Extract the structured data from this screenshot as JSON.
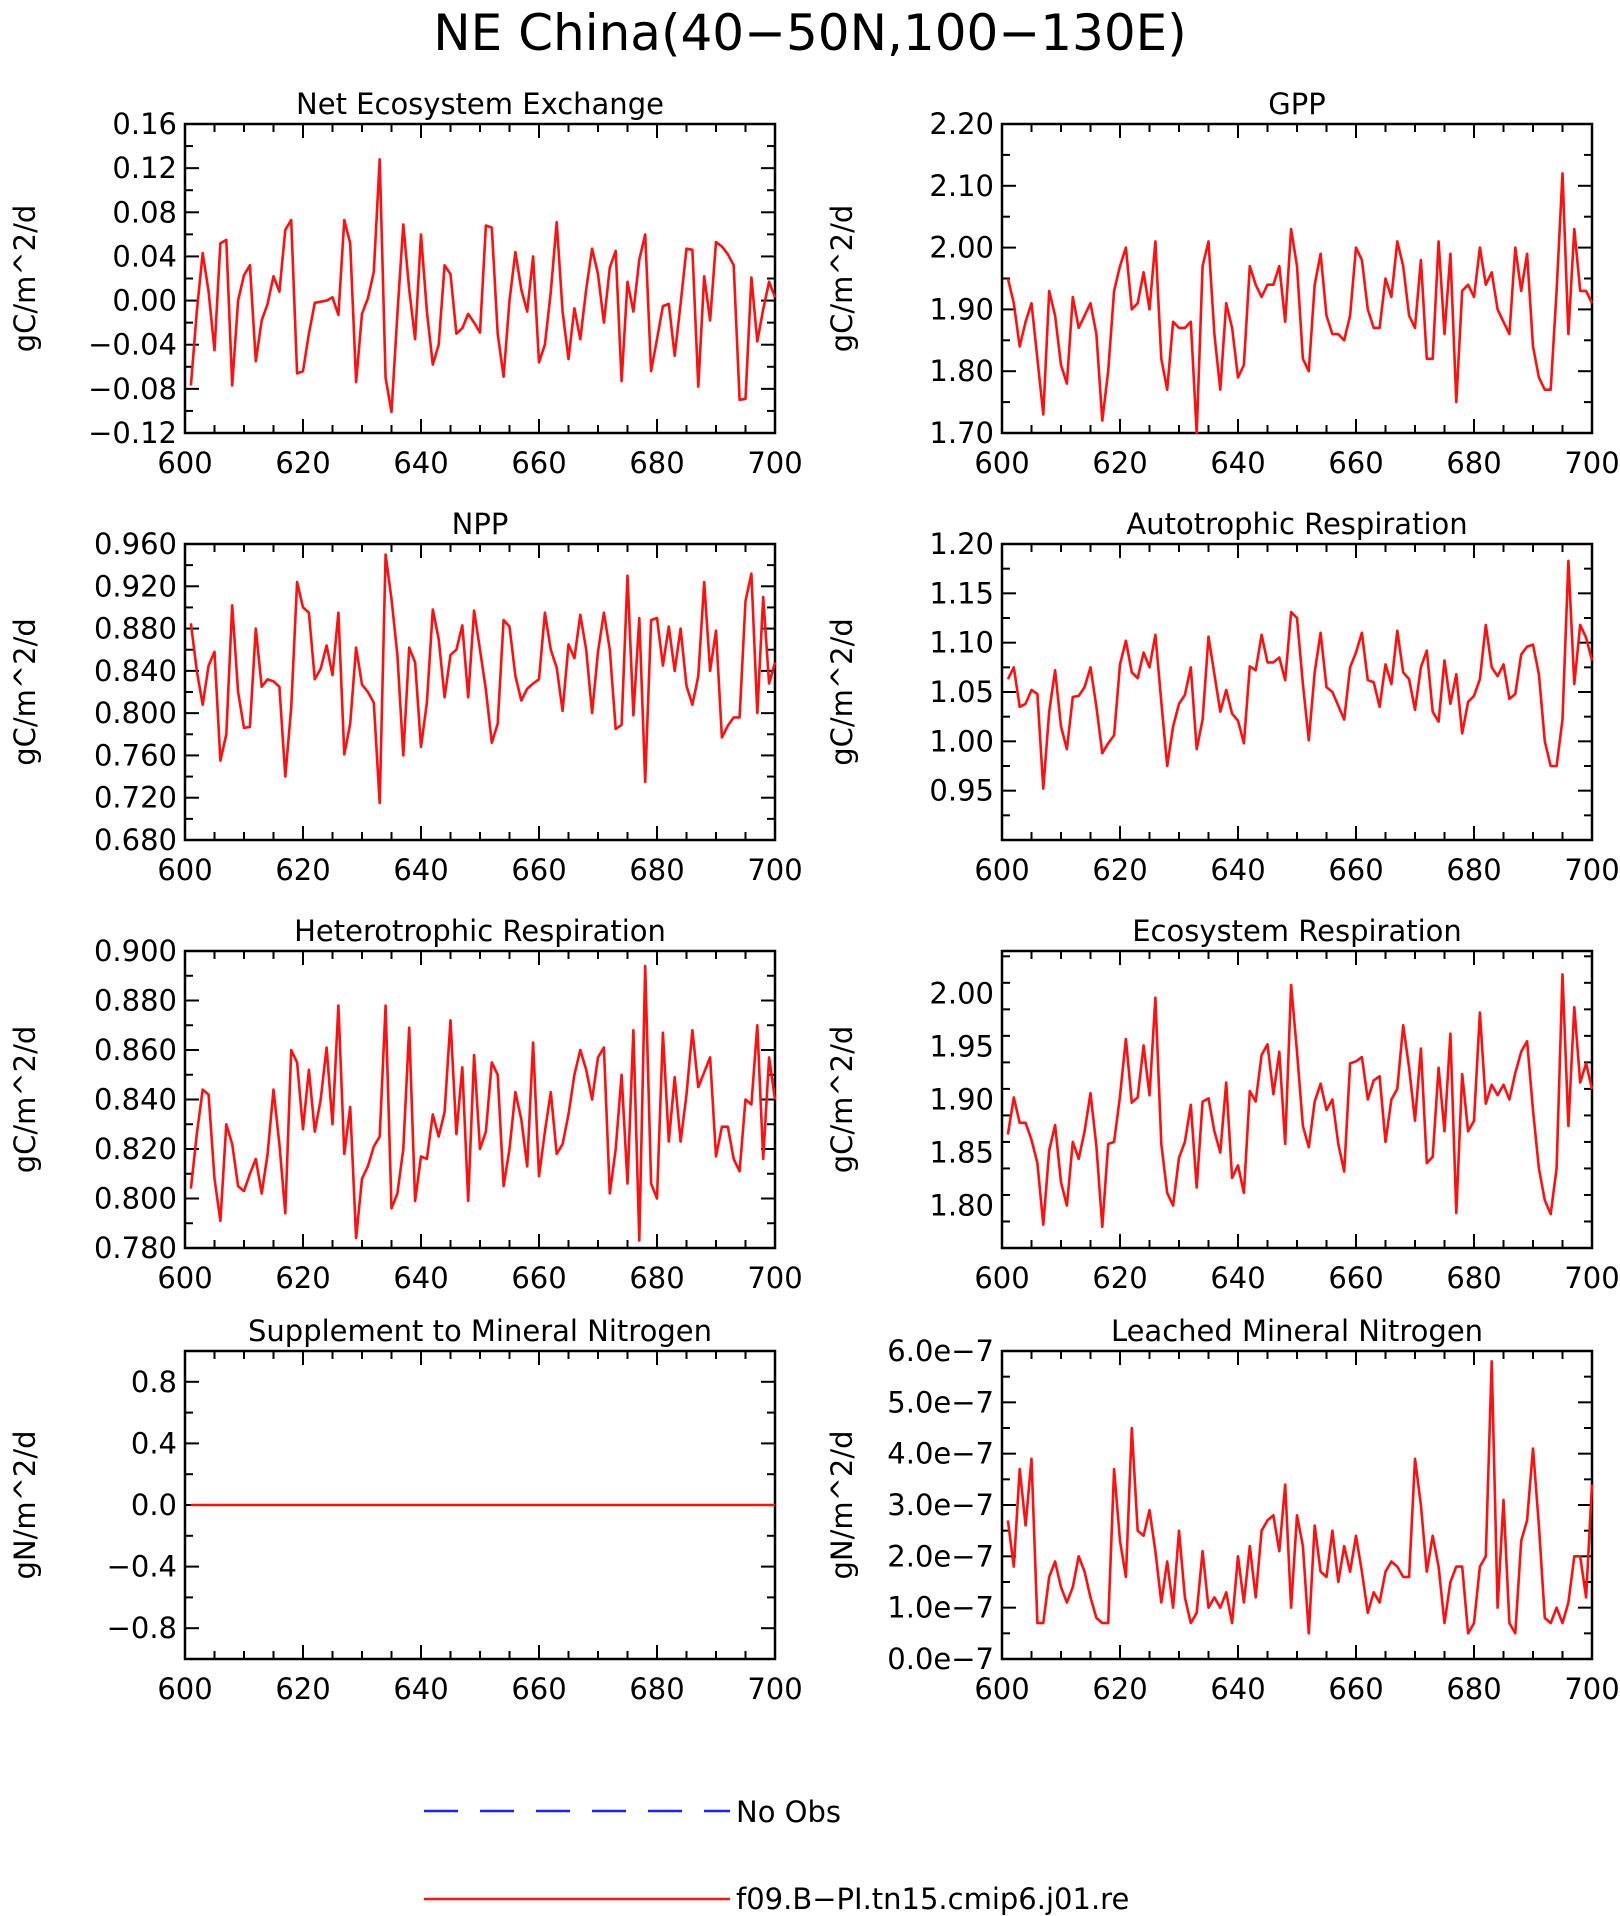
{
  "title": "NE China(40−50N,100−130E)",
  "legend": {
    "items": [
      {
        "label": "No Obs",
        "color": "#1f1fff",
        "style": "dashed"
      },
      {
        "label": "f09.B−PI.tn15.cmip6.j01.re",
        "color": "#ff1010",
        "style": "solid"
      }
    ]
  },
  "chart_data": [
    {
      "type": "line",
      "title": "Net Ecosystem Exchange",
      "ylabel": "gC/m^2/d",
      "xlim": [
        600,
        700
      ],
      "ylim": [
        -0.12,
        0.16
      ],
      "xticks": [
        600,
        620,
        640,
        660,
        680,
        700
      ],
      "yticks": [
        -0.12,
        -0.08,
        -0.04,
        0.0,
        0.04,
        0.08,
        0.12,
        0.16
      ],
      "yticklabels": [
        "−0.12",
        "−0.08",
        "−0.04",
        "0.00",
        "0.04",
        "0.08",
        "0.12",
        "0.16"
      ],
      "series": [
        {
          "name": "f09.B−PI.tn15.cmip6.j01.re",
          "color": "#ff1010",
          "x0": 601,
          "dx": 1,
          "values": [
            -0.077,
            -0.01,
            0.043,
            0.008,
            -0.045,
            0.052,
            0.055,
            -0.077,
            0.0,
            0.023,
            0.032,
            -0.055,
            -0.018,
            -0.003,
            0.022,
            0.008,
            0.064,
            0.073,
            -0.066,
            -0.064,
            -0.03,
            -0.002,
            -0.001,
            0.0,
            0.003,
            -0.013,
            0.073,
            0.052,
            -0.074,
            -0.012,
            0.002,
            0.026,
            0.128,
            -0.07,
            -0.101,
            -0.012,
            0.069,
            0.01,
            -0.035,
            0.06,
            -0.01,
            -0.058,
            -0.04,
            0.032,
            0.024,
            -0.03,
            -0.025,
            -0.012,
            -0.02,
            -0.029,
            0.068,
            0.066,
            -0.03,
            -0.069,
            0.0,
            0.044,
            0.01,
            -0.01,
            0.04,
            -0.056,
            -0.04,
            0.008,
            0.071,
            -0.01,
            -0.053,
            -0.007,
            -0.035,
            0.01,
            0.047,
            0.024,
            -0.02,
            0.03,
            0.045,
            -0.073,
            0.017,
            -0.01,
            0.037,
            0.06,
            -0.064,
            -0.035,
            -0.005,
            -0.003,
            -0.05,
            -0.003,
            0.047,
            0.046,
            -0.078,
            0.022,
            -0.018,
            0.053,
            0.049,
            0.042,
            0.032,
            -0.09,
            -0.089,
            0.021,
            -0.037,
            -0.008,
            0.017,
            0.003
          ]
        }
      ]
    },
    {
      "type": "line",
      "title": "GPP",
      "ylabel": "gC/m^2/d",
      "xlim": [
        600,
        700
      ],
      "ylim": [
        1.7,
        2.2
      ],
      "xticks": [
        600,
        620,
        640,
        660,
        680,
        700
      ],
      "yticks": [
        1.7,
        1.8,
        1.9,
        2.0,
        2.1,
        2.2
      ],
      "yticklabels": [
        "1.70",
        "1.80",
        "1.90",
        "2.00",
        "2.10",
        "2.20"
      ],
      "series": [
        {
          "name": "f09.B−PI.tn15.cmip6.j01.re",
          "color": "#ff1010",
          "x0": 601,
          "dx": 1,
          "values": [
            1.95,
            1.91,
            1.84,
            1.88,
            1.91,
            1.82,
            1.73,
            1.93,
            1.89,
            1.81,
            1.78,
            1.92,
            1.87,
            1.89,
            1.91,
            1.86,
            1.72,
            1.8,
            1.93,
            1.97,
            2.0,
            1.9,
            1.91,
            1.96,
            1.9,
            2.01,
            1.82,
            1.77,
            1.88,
            1.87,
            1.87,
            1.88,
            1.7,
            1.97,
            2.01,
            1.86,
            1.77,
            1.91,
            1.87,
            1.79,
            1.81,
            1.97,
            1.94,
            1.92,
            1.94,
            1.94,
            1.97,
            1.88,
            2.03,
            1.97,
            1.82,
            1.8,
            1.94,
            1.99,
            1.89,
            1.86,
            1.86,
            1.85,
            1.89,
            2.0,
            1.98,
            1.9,
            1.87,
            1.87,
            1.95,
            1.92,
            2.01,
            1.97,
            1.89,
            1.87,
            1.98,
            1.82,
            1.82,
            2.01,
            1.86,
            1.99,
            1.75,
            1.93,
            1.94,
            1.92,
            2.0,
            1.94,
            1.96,
            1.9,
            1.88,
            1.86,
            2.0,
            1.93,
            1.99,
            1.84,
            1.79,
            1.77,
            1.77,
            1.93,
            2.12,
            1.86,
            2.03,
            1.93,
            1.93,
            1.91
          ]
        }
      ]
    },
    {
      "type": "line",
      "title": "NPP",
      "ylabel": "gC/m^2/d",
      "xlim": [
        600,
        700
      ],
      "ylim": [
        0.68,
        0.96
      ],
      "xticks": [
        600,
        620,
        640,
        660,
        680,
        700
      ],
      "yticks": [
        0.68,
        0.72,
        0.76,
        0.8,
        0.84,
        0.88,
        0.92,
        0.96
      ],
      "yticklabels": [
        "0.680",
        "0.720",
        "0.760",
        "0.800",
        "0.840",
        "0.880",
        "0.920",
        "0.960"
      ],
      "series": [
        {
          "name": "f09.B−PI.tn15.cmip6.j01.re",
          "color": "#ff1010",
          "x0": 601,
          "dx": 1,
          "values": [
            0.885,
            0.84,
            0.808,
            0.845,
            0.858,
            0.755,
            0.78,
            0.902,
            0.82,
            0.786,
            0.787,
            0.88,
            0.825,
            0.832,
            0.83,
            0.825,
            0.74,
            0.805,
            0.924,
            0.9,
            0.895,
            0.832,
            0.842,
            0.864,
            0.836,
            0.895,
            0.761,
            0.79,
            0.862,
            0.827,
            0.82,
            0.81,
            0.715,
            0.95,
            0.908,
            0.855,
            0.76,
            0.862,
            0.848,
            0.768,
            0.81,
            0.898,
            0.87,
            0.815,
            0.855,
            0.86,
            0.883,
            0.815,
            0.897,
            0.86,
            0.822,
            0.772,
            0.79,
            0.888,
            0.882,
            0.835,
            0.812,
            0.823,
            0.828,
            0.832,
            0.895,
            0.86,
            0.843,
            0.802,
            0.865,
            0.852,
            0.893,
            0.86,
            0.8,
            0.858,
            0.895,
            0.86,
            0.785,
            0.789,
            0.93,
            0.798,
            0.89,
            0.735,
            0.888,
            0.89,
            0.845,
            0.882,
            0.84,
            0.88,
            0.826,
            0.808,
            0.835,
            0.924,
            0.84,
            0.878,
            0.777,
            0.788,
            0.796,
            0.796,
            0.906,
            0.932,
            0.8,
            0.91,
            0.828,
            0.848
          ]
        }
      ]
    },
    {
      "type": "line",
      "title": "Autotrophic Respiration",
      "ylabel": "gC/m^2/d",
      "xlim": [
        600,
        700
      ],
      "ylim": [
        0.9,
        1.2
      ],
      "xticks": [
        600,
        620,
        640,
        660,
        680,
        700
      ],
      "yticks": [
        0.95,
        1.0,
        1.05,
        1.1,
        1.15,
        1.2
      ],
      "yticklabels": [
        "0.95",
        "1.00",
        "1.05",
        "1.10",
        "1.15",
        "1.20"
      ],
      "series": [
        {
          "name": "f09.B−PI.tn15.cmip6.j01.re",
          "color": "#ff1010",
          "x0": 601,
          "dx": 1,
          "values": [
            1.063,
            1.075,
            1.035,
            1.038,
            1.052,
            1.048,
            0.952,
            1.03,
            1.072,
            1.015,
            0.992,
            1.045,
            1.046,
            1.055,
            1.075,
            1.035,
            0.988,
            0.998,
            1.006,
            1.078,
            1.102,
            1.07,
            1.064,
            1.09,
            1.075,
            1.108,
            1.04,
            0.975,
            1.015,
            1.038,
            1.047,
            1.075,
            0.992,
            1.022,
            1.106,
            1.068,
            1.03,
            1.052,
            1.028,
            1.021,
            0.998,
            1.076,
            1.072,
            1.108,
            1.08,
            1.08,
            1.085,
            1.062,
            1.131,
            1.125,
            1.058,
            1.001,
            1.07,
            1.11,
            1.055,
            1.05,
            1.036,
            1.022,
            1.075,
            1.09,
            1.11,
            1.062,
            1.06,
            1.035,
            1.078,
            1.058,
            1.112,
            1.07,
            1.063,
            1.032,
            1.075,
            1.092,
            1.03,
            1.02,
            1.082,
            1.038,
            1.068,
            1.008,
            1.04,
            1.046,
            1.063,
            1.118,
            1.075,
            1.066,
            1.078,
            1.043,
            1.048,
            1.088,
            1.096,
            1.098,
            1.068,
            1.0,
            0.975,
            0.975,
            1.022,
            1.183,
            1.058,
            1.118,
            1.105,
            1.082
          ]
        }
      ]
    },
    {
      "type": "line",
      "title": "Heterotrophic Respiration",
      "ylabel": "gC/m^2/d",
      "xlim": [
        600,
        700
      ],
      "ylim": [
        0.78,
        0.9
      ],
      "xticks": [
        600,
        620,
        640,
        660,
        680,
        700
      ],
      "yticks": [
        0.78,
        0.8,
        0.82,
        0.84,
        0.86,
        0.88,
        0.9
      ],
      "yticklabels": [
        "0.780",
        "0.800",
        "0.820",
        "0.840",
        "0.860",
        "0.880",
        "0.900"
      ],
      "series": [
        {
          "name": "f09.B−PI.tn15.cmip6.j01.re",
          "color": "#ff1010",
          "x0": 601,
          "dx": 1,
          "values": [
            0.804,
            0.826,
            0.844,
            0.842,
            0.808,
            0.791,
            0.83,
            0.822,
            0.805,
            0.803,
            0.81,
            0.816,
            0.802,
            0.818,
            0.844,
            0.822,
            0.794,
            0.86,
            0.855,
            0.828,
            0.852,
            0.827,
            0.84,
            0.861,
            0.83,
            0.878,
            0.818,
            0.837,
            0.784,
            0.808,
            0.813,
            0.821,
            0.825,
            0.878,
            0.796,
            0.802,
            0.82,
            0.869,
            0.799,
            0.817,
            0.816,
            0.834,
            0.825,
            0.835,
            0.872,
            0.826,
            0.853,
            0.799,
            0.858,
            0.82,
            0.827,
            0.855,
            0.85,
            0.805,
            0.82,
            0.843,
            0.832,
            0.813,
            0.863,
            0.809,
            0.827,
            0.843,
            0.818,
            0.822,
            0.834,
            0.85,
            0.86,
            0.852,
            0.84,
            0.857,
            0.861,
            0.802,
            0.82,
            0.85,
            0.806,
            0.868,
            0.783,
            0.894,
            0.806,
            0.8,
            0.867,
            0.823,
            0.849,
            0.823,
            0.842,
            0.868,
            0.845,
            0.851,
            0.857,
            0.817,
            0.829,
            0.829,
            0.816,
            0.811,
            0.84,
            0.838,
            0.87,
            0.816,
            0.857,
            0.84
          ]
        }
      ]
    },
    {
      "type": "line",
      "title": "Ecosystem Respiration",
      "ylabel": "gC/m^2/d",
      "xlim": [
        600,
        700
      ],
      "ylim": [
        1.76,
        2.04
      ],
      "xticks": [
        600,
        620,
        640,
        660,
        680,
        700
      ],
      "yticks": [
        1.8,
        1.85,
        1.9,
        1.95,
        2.0
      ],
      "yticklabels": [
        "1.80",
        "1.85",
        "1.90",
        "1.95",
        "2.00"
      ],
      "series": [
        {
          "name": "f09.B−PI.tn15.cmip6.j01.re",
          "color": "#ff1010",
          "x0": 601,
          "dx": 1,
          "values": [
            1.867,
            1.902,
            1.878,
            1.878,
            1.862,
            1.84,
            1.782,
            1.852,
            1.876,
            1.822,
            1.8,
            1.86,
            1.844,
            1.87,
            1.906,
            1.856,
            1.78,
            1.858,
            1.86,
            1.903,
            1.957,
            1.897,
            1.902,
            1.951,
            1.904,
            1.996,
            1.858,
            1.812,
            1.8,
            1.845,
            1.86,
            1.895,
            1.817,
            1.898,
            1.901,
            1.87,
            1.85,
            1.916,
            1.826,
            1.838,
            1.812,
            1.908,
            1.898,
            1.942,
            1.952,
            1.905,
            1.945,
            1.858,
            2.008,
            1.945,
            1.875,
            1.855,
            1.898,
            1.915,
            1.89,
            1.9,
            1.858,
            1.832,
            1.934,
            1.936,
            1.94,
            1.9,
            1.918,
            1.922,
            1.86,
            1.9,
            1.91,
            1.97,
            1.93,
            1.88,
            1.948,
            1.84,
            1.846,
            1.93,
            1.87,
            1.962,
            1.793,
            1.924,
            1.87,
            1.88,
            1.982,
            1.896,
            1.914,
            1.904,
            1.914,
            1.9,
            1.925,
            1.945,
            1.955,
            1.89,
            1.835,
            1.805,
            1.792,
            1.835,
            2.018,
            1.875,
            1.987,
            1.916,
            1.934,
            1.91
          ]
        }
      ]
    },
    {
      "type": "line",
      "title": "Supplement to Mineral Nitrogen",
      "ylabel": "gN/m^2/d",
      "xlim": [
        600,
        700
      ],
      "ylim": [
        -1.0,
        1.0
      ],
      "xticks": [
        600,
        620,
        640,
        660,
        680,
        700
      ],
      "yticks": [
        -0.8,
        -0.4,
        0.0,
        0.4,
        0.8
      ],
      "yticklabels": [
        "−0.8",
        "−0.4",
        "0.0",
        "0.4",
        "0.8"
      ],
      "series": [
        {
          "name": "f09.B−PI.tn15.cmip6.j01.re",
          "color": "#ff1010",
          "x0": 601,
          "dx": 99,
          "values": [
            0.0,
            0.0
          ]
        }
      ]
    },
    {
      "type": "line",
      "title": "Leached Mineral Nitrogen",
      "ylabel": "gN/m^2/d",
      "xlim": [
        600,
        700
      ],
      "ylim": [
        0.0,
        6.0
      ],
      "xticks": [
        600,
        620,
        640,
        660,
        680,
        700
      ],
      "yticks": [
        0.0,
        1.0,
        2.0,
        3.0,
        4.0,
        5.0,
        6.0
      ],
      "yticklabels": [
        "0.0e−7",
        "1.0e−7",
        "2.0e−7",
        "3.0e−7",
        "4.0e−7",
        "5.0e−7",
        "6.0e−7"
      ],
      "series": [
        {
          "name": "f09.B−PI.tn15.cmip6.j01.re",
          "color": "#ff1010",
          "x0": 601,
          "dx": 1,
          "values": [
            2.7,
            1.8,
            3.7,
            2.6,
            3.9,
            0.7,
            0.7,
            1.6,
            1.9,
            1.4,
            1.1,
            1.4,
            2.0,
            1.7,
            1.2,
            0.8,
            0.7,
            0.7,
            3.7,
            2.3,
            1.6,
            4.5,
            2.5,
            2.4,
            2.9,
            2.1,
            1.1,
            1.9,
            1.0,
            2.5,
            1.2,
            0.7,
            0.9,
            2.1,
            1.0,
            1.2,
            1.0,
            1.3,
            0.7,
            2.0,
            1.1,
            2.2,
            1.2,
            2.5,
            2.7,
            2.8,
            2.1,
            3.4,
            1.0,
            2.8,
            2.2,
            0.5,
            2.6,
            1.7,
            1.6,
            2.5,
            1.5,
            2.2,
            1.7,
            2.4,
            1.7,
            0.9,
            1.3,
            1.1,
            1.7,
            1.9,
            1.8,
            1.6,
            1.6,
            3.9,
            3.0,
            1.7,
            2.4,
            1.8,
            0.7,
            1.5,
            1.8,
            1.8,
            0.5,
            0.7,
            1.8,
            2.0,
            5.8,
            1.0,
            3.1,
            0.7,
            0.5,
            2.3,
            2.7,
            4.1,
            2.6,
            0.8,
            0.7,
            1.0,
            0.7,
            1.1,
            2.0,
            2.0,
            1.2,
            3.4
          ]
        }
      ]
    }
  ]
}
